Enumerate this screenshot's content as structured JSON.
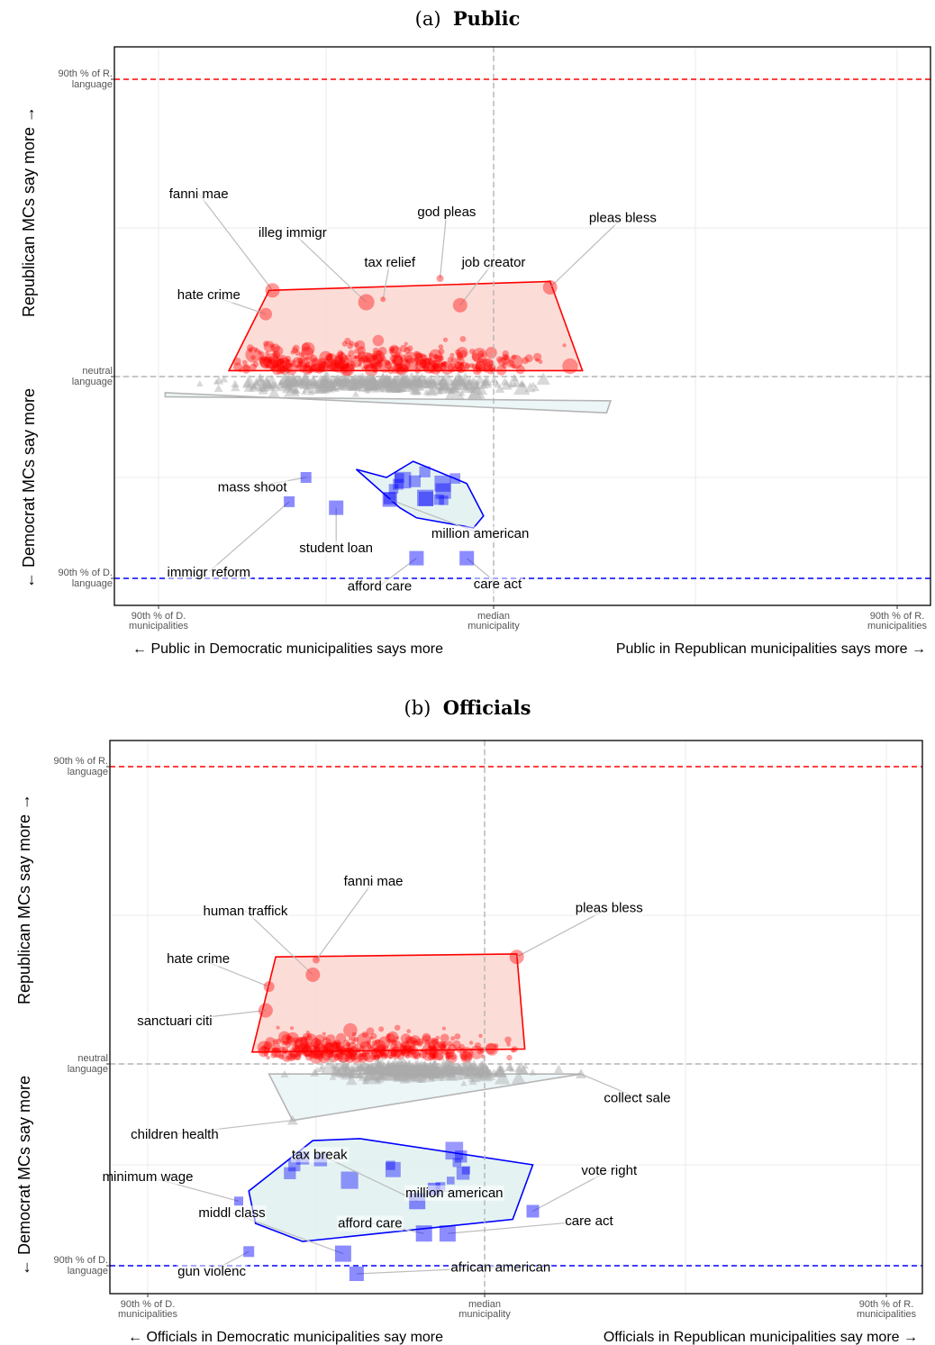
{
  "chart_data": [
    {
      "type": "scatter",
      "panel_label": "(a)",
      "title": "Public",
      "xlabel_left": "← Public in Democratic municipalities says more",
      "xlabel_right": "Public in Republican municipalities says more →",
      "ylabel_top": "Republican MCs say more →",
      "ylabel_bottom": "← Democrat MCs say more",
      "x_ticks": [
        "90th % of D.|municipalities",
        "median|municipality",
        "90th % of R.|municipalities"
      ],
      "y_ticks": [
        "90th % of R.|language",
        "neutral|language",
        "90th % of D.|language"
      ],
      "xlim": [
        -1.0,
        1.2
      ],
      "ylim": [
        -1.1,
        1.15
      ],
      "reference_lines": {
        "r90": 1.0,
        "d90": -1.0,
        "neutral": 0,
        "median": 0
      },
      "colors": {
        "republican": "#ff0000",
        "democrat": "#0000ff",
        "neutral": "#aaaaaa",
        "rep_fill": "#fbd6d0",
        "dem_fill": "#dff1ee",
        "neu_fill": "#eaf5f6"
      },
      "hulls": {
        "republican": [
          [
            -0.79,
            0.02
          ],
          [
            -0.67,
            0.29
          ],
          [
            0.14,
            0.32
          ],
          [
            0.22,
            0.02
          ]
        ],
        "neutral": [
          [
            -0.98,
            -0.08
          ],
          [
            0.28,
            -0.18
          ],
          [
            0.29,
            -0.12
          ],
          [
            -0.98,
            -0.1
          ]
        ],
        "democrat": [
          [
            -0.41,
            -0.46
          ],
          [
            -0.32,
            -0.5
          ],
          [
            -0.24,
            -0.42
          ],
          [
            -0.08,
            -0.53
          ],
          [
            -0.03,
            -0.69
          ],
          [
            -0.06,
            -0.75
          ],
          [
            -0.23,
            -0.7
          ],
          [
            -0.28,
            -0.65
          ]
        ]
      },
      "labeled_points": [
        {
          "party": "republican",
          "term": "fanni mae",
          "x": -0.66,
          "y": 0.29,
          "r": 8
        },
        {
          "party": "republican",
          "term": "illeg immigr",
          "x": -0.38,
          "y": 0.25,
          "r": 9
        },
        {
          "party": "republican",
          "term": "tax relief",
          "x": -0.33,
          "y": 0.26,
          "r": 3
        },
        {
          "party": "republican",
          "term": "god pleas",
          "x": -0.16,
          "y": 0.33,
          "r": 4
        },
        {
          "party": "republican",
          "term": "pleas bless",
          "x": 0.14,
          "y": 0.3,
          "r": 8
        },
        {
          "party": "republican",
          "term": "job creator",
          "x": -0.1,
          "y": 0.24,
          "r": 8
        },
        {
          "party": "republican",
          "term": "hate crime",
          "x": -0.68,
          "y": 0.21,
          "r": 7
        },
        {
          "party": "democrat",
          "term": "mass shoot",
          "x": -0.56,
          "y": -0.5,
          "r": 6
        },
        {
          "party": "democrat",
          "term": "immigr reform",
          "x": -0.61,
          "y": -0.62,
          "r": 6
        },
        {
          "party": "democrat",
          "term": "student loan",
          "x": -0.47,
          "y": -0.65,
          "r": 8
        },
        {
          "party": "democrat",
          "term": "million american",
          "x": -0.31,
          "y": -0.61,
          "r": 8
        },
        {
          "party": "democrat",
          "term": "afford care",
          "x": -0.23,
          "y": -0.9,
          "r": 8
        },
        {
          "party": "democrat",
          "term": "care act",
          "x": -0.08,
          "y": -0.9,
          "r": 8
        }
      ],
      "label_positions": [
        {
          "term": "fanni mae",
          "lx": -0.88,
          "ly": 0.6
        },
        {
          "term": "illeg immigr",
          "lx": -0.6,
          "ly": 0.47
        },
        {
          "term": "tax relief",
          "lx": -0.31,
          "ly": 0.37
        },
        {
          "term": "god pleas",
          "lx": -0.14,
          "ly": 0.54
        },
        {
          "term": "pleas bless",
          "lx": 0.32,
          "ly": 0.52
        },
        {
          "term": "job creator",
          "lx": 0.0,
          "ly": 0.37
        },
        {
          "term": "hate crime",
          "lx": -0.85,
          "ly": 0.26
        },
        {
          "term": "mass shoot",
          "lx": -0.72,
          "ly": -0.57
        },
        {
          "term": "immigr reform",
          "lx": -0.85,
          "ly": -0.99
        },
        {
          "term": "student loan",
          "lx": -0.47,
          "ly": -0.87
        },
        {
          "term": "million american",
          "lx": -0.04,
          "ly": -0.8
        },
        {
          "term": "afford care",
          "lx": -0.34,
          "ly": -1.06
        },
        {
          "term": "care act",
          "lx": 0.01,
          "ly": -1.05
        }
      ]
    },
    {
      "type": "scatter",
      "panel_label": "(b)",
      "title": "Officials",
      "xlabel_left": "← Officials in Democratic municipalities say more",
      "xlabel_right": "Officials in Republican municipalities say more →",
      "ylabel_top": "Republican MCs say more →",
      "ylabel_bottom": "← Democrat MCs say more",
      "x_ticks": [
        "90th % of D.|municipalities",
        "median|municipality",
        "90th % of R.|municipalities"
      ],
      "y_ticks": [
        "90th % of R.|language",
        "neutral|language",
        "90th % of D.|language"
      ],
      "xlim": [
        -1.1,
        1.3
      ],
      "ylim": [
        -1.1,
        1.15
      ],
      "reference_lines": {
        "r90": 1.0,
        "d90": -1.0,
        "neutral": 0,
        "median": 0
      },
      "colors": {
        "republican": "#ff0000",
        "democrat": "#0000ff",
        "neutral": "#aaaaaa",
        "rep_fill": "#fbd6d0",
        "dem_fill": "#dff1ee",
        "neu_fill": "#eaf5f6"
      },
      "hulls": {
        "republican": [
          [
            -0.69,
            0.04
          ],
          [
            -0.62,
            0.36
          ],
          [
            0.08,
            0.37
          ],
          [
            0.1,
            0.05
          ]
        ],
        "neutral": [
          [
            -0.64,
            -0.05
          ],
          [
            0.24,
            -0.05
          ],
          [
            -0.57,
            -0.28
          ]
        ],
        "democrat": [
          [
            -0.51,
            -0.38
          ],
          [
            -0.37,
            -0.37
          ],
          [
            0.12,
            -0.5
          ],
          [
            0.07,
            -0.77
          ],
          [
            -0.54,
            -0.88
          ],
          [
            -0.68,
            -0.79
          ],
          [
            -0.7,
            -0.63
          ]
        ]
      },
      "labeled_points": [
        {
          "party": "republican",
          "term": "fanni mae",
          "x": -0.5,
          "y": 0.35,
          "r": 4
        },
        {
          "party": "republican",
          "term": "human traffick",
          "x": -0.51,
          "y": 0.3,
          "r": 8
        },
        {
          "party": "republican",
          "term": "hate crime",
          "x": -0.64,
          "y": 0.26,
          "r": 6
        },
        {
          "party": "republican",
          "term": "sanctuari citi",
          "x": -0.65,
          "y": 0.18,
          "r": 8
        },
        {
          "party": "republican",
          "term": "pleas bless",
          "x": 0.08,
          "y": 0.36,
          "r": 8
        },
        {
          "party": "neutral",
          "term": "collect sale",
          "x": 0.24,
          "y": -0.05,
          "r": 6
        },
        {
          "party": "neutral",
          "term": "children health",
          "x": -0.57,
          "y": -0.28,
          "r": 6
        },
        {
          "party": "democrat",
          "term": "minimum wage",
          "x": -0.73,
          "y": -0.68,
          "r": 5
        },
        {
          "party": "democrat",
          "term": "tax break",
          "x": -0.2,
          "y": -0.68,
          "r": 9
        },
        {
          "party": "democrat",
          "term": "million american",
          "x": -0.15,
          "y": -0.62,
          "r": 7
        },
        {
          "party": "democrat",
          "term": "vote right",
          "x": 0.12,
          "y": -0.73,
          "r": 7
        },
        {
          "party": "democrat",
          "term": "middl class",
          "x": -0.42,
          "y": -0.94,
          "r": 9
        },
        {
          "party": "democrat",
          "term": "afford care",
          "x": -0.18,
          "y": -0.84,
          "r": 9
        },
        {
          "party": "democrat",
          "term": "care act",
          "x": -0.11,
          "y": -0.84,
          "r": 9
        },
        {
          "party": "democrat",
          "term": "gun violenc",
          "x": -0.7,
          "y": -0.93,
          "r": 6
        },
        {
          "party": "democrat",
          "term": "african american",
          "x": -0.38,
          "y": -1.04,
          "r": 8
        }
      ],
      "label_positions": [
        {
          "term": "fanni mae",
          "lx": -0.33,
          "ly": 0.6
        },
        {
          "term": "human traffick",
          "lx": -0.71,
          "ly": 0.5
        },
        {
          "term": "hate crime",
          "lx": -0.85,
          "ly": 0.34
        },
        {
          "term": "sanctuari citi",
          "lx": -0.92,
          "ly": 0.13
        },
        {
          "term": "pleas bless",
          "lx": 0.31,
          "ly": 0.51
        },
        {
          "term": "collect sale",
          "lx": 0.38,
          "ly": -0.19
        },
        {
          "term": "children health",
          "lx": -0.92,
          "ly": -0.37
        },
        {
          "term": "minimum wage",
          "lx": -1.0,
          "ly": -0.58
        },
        {
          "term": "tax break",
          "lx": -0.49,
          "ly": -0.47
        },
        {
          "term": "million american",
          "lx": -0.09,
          "ly": -0.66
        },
        {
          "term": "vote right",
          "lx": 0.31,
          "ly": -0.55
        },
        {
          "term": "middl class",
          "lx": -0.75,
          "ly": -0.76
        },
        {
          "term": "afford care",
          "lx": -0.34,
          "ly": -0.81
        },
        {
          "term": "care act",
          "lx": 0.26,
          "ly": -0.8
        },
        {
          "term": "gun violenc",
          "lx": -0.81,
          "ly": -1.05
        },
        {
          "term": "african american",
          "lx": 0.04,
          "ly": -1.03
        }
      ]
    }
  ]
}
